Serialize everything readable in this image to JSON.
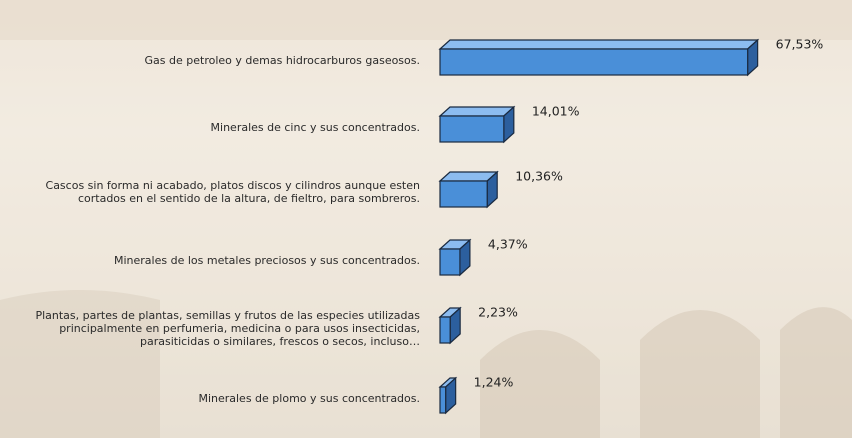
{
  "chart_data": {
    "type": "bar3d_horizontal",
    "categories": [
      "Gas de petroleo y demas hidrocarburos gaseosos.",
      "Minerales de cinc y sus concentrados.",
      "Cascos sin forma ni acabado, platos discos y cilindros aunque esten cortados en el sentido de la altura, de fieltro, para sombreros.",
      "Minerales de los metales preciosos y sus concentrados.",
      "Plantas, partes de plantas, semillas y frutos de las especies utilizadas principalmente en perfumeria, medicina o para usos insecticidas, parasiticidas o similares, frescos o secos, incluso…",
      "Minerales de plomo y sus concentrados."
    ],
    "values": [
      67.53,
      14.01,
      10.36,
      4.37,
      2.23,
      1.24
    ],
    "value_labels": [
      "67,53%",
      "14,01%",
      "10,36%",
      "4,37%",
      "2,23%",
      "1,24%"
    ],
    "color": "#4a8fd8",
    "xlim": [
      0,
      90
    ]
  }
}
